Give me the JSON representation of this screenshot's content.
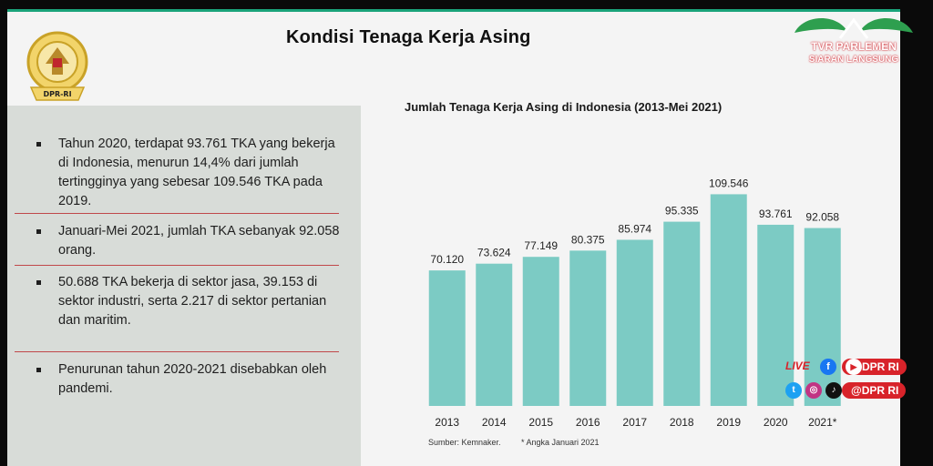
{
  "slide": {
    "title": "Kondisi Tenaga Kerja Asing",
    "logo_text": "DPR-RI",
    "bullets": [
      "Tahun 2020, terdapat 93.761 TKA yang bekerja di Indonesia, menurun 14,4% dari jumlah tertingginya yang sebesar 109.546 TKA pada 2019.",
      "Januari-Mei 2021, jumlah TKA sebanyak 92.058 orang.",
      "50.688 TKA bekerja di sektor jasa, 39.153 di sektor industri, serta 2.217 di sektor pertanian dan maritim.",
      "Penurunan tahun 2020-2021 disebabkan oleh pandemi."
    ],
    "source": "Sumber: Kemnaker.",
    "note": "* Angka Januari 2021"
  },
  "chart_data": {
    "type": "bar",
    "title": "Jumlah Tenaga Kerja Asing di Indonesia (2013-Mei 2021)",
    "categories": [
      "2013",
      "2014",
      "2015",
      "2016",
      "2017",
      "2018",
      "2019",
      "2020",
      "2021*"
    ],
    "values": [
      70120,
      73624,
      77149,
      80375,
      85974,
      95335,
      109546,
      93761,
      92058
    ],
    "value_labels": [
      "70.120",
      "73.624",
      "77.149",
      "80.375",
      "85.974",
      "95.335",
      "109.546",
      "93.761",
      "92.058"
    ],
    "ylim": [
      0,
      130000
    ],
    "bar_color": "#7ccbc4",
    "grid": false
  },
  "overlay": {
    "channel_name": "TVR PARLEMEN",
    "channel_sub": "SIARAN LANGSUNG",
    "live_label": "LIVE",
    "social_handle_1": "DPR RI",
    "social_handle_2": "@DPR RI",
    "icons": [
      "facebook-icon",
      "youtube-icon",
      "twitter-icon",
      "instagram-icon",
      "tiktok-icon"
    ],
    "accent_color": "#d8232a"
  }
}
